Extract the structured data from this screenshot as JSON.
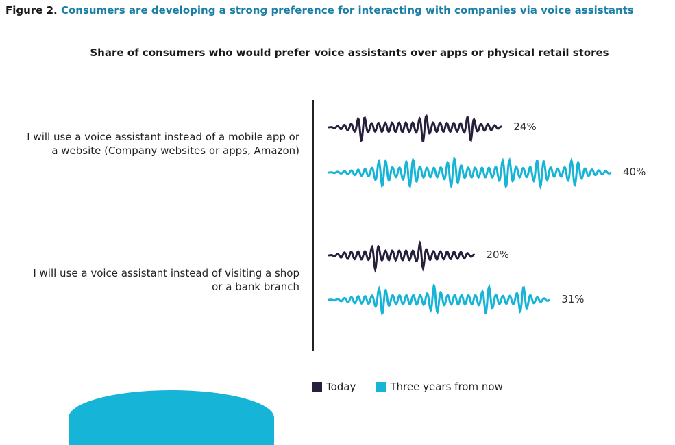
{
  "figure": {
    "number": "Figure 2.",
    "title": "Consumers are developing a strong preference for interacting with companies via voice assistants"
  },
  "colors": {
    "today": "#271f3b",
    "three_years": "#16b4d6",
    "title_accent": "#1a7fa6"
  },
  "chart_data": {
    "type": "bar",
    "title": "Share of consumers who would prefer voice assistants over apps or physical retail stores",
    "categories": [
      "I will use a voice assistant instead of a mobile app or a website (Company websites or apps, Amazon)",
      "I will use a voice assistant instead of visiting a shop or a bank branch"
    ],
    "category_lines": [
      [
        "I will use a voice assistant instead of a mobile app or",
        "a website (Company websites or apps, Amazon)"
      ],
      [
        "I will use a voice assistant instead of visiting a shop",
        "or a bank branch"
      ]
    ],
    "series": [
      {
        "name": "Today",
        "values": [
          24,
          20
        ],
        "labels": [
          "24%",
          "20%"
        ]
      },
      {
        "name": "Three years from now",
        "values": [
          40,
          31
        ],
        "labels": [
          "40%",
          "31%"
        ]
      }
    ],
    "xlim": [
      0,
      40
    ],
    "legend_position": "bottom",
    "grid": false
  }
}
